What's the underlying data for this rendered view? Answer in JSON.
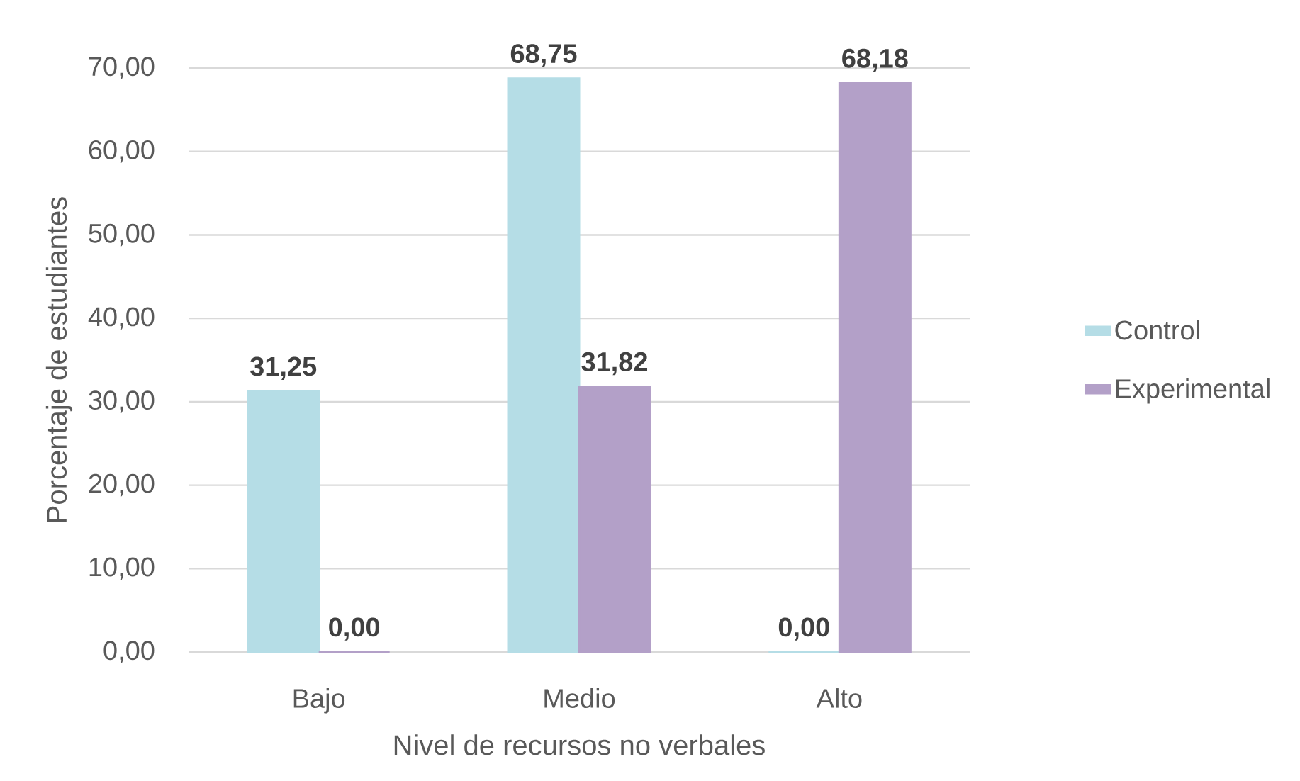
{
  "chart_data": {
    "type": "bar",
    "xlabel": "Nivel de recursos no verbales",
    "ylabel": "Porcentaje de estudiantes",
    "categories": [
      "Bajo",
      "Medio",
      "Alto"
    ],
    "series": [
      {
        "name": "Control",
        "color": "#b5dde6",
        "values": [
          31.25,
          68.75,
          0
        ],
        "value_labels": [
          "31,25",
          "68,75",
          "0,00"
        ]
      },
      {
        "name": "Experimental",
        "color": "#b3a0c8",
        "values": [
          0,
          31.82,
          68.18
        ],
        "value_labels": [
          "0,00",
          "31,82",
          "68,18"
        ]
      }
    ],
    "ylim": [
      0,
      70
    ],
    "yticks": [
      {
        "value": 0,
        "label": "0,00"
      },
      {
        "value": 10,
        "label": "10,00"
      },
      {
        "value": 20,
        "label": "20,00"
      },
      {
        "value": 30,
        "label": "30,00"
      },
      {
        "value": 40,
        "label": "40,00"
      },
      {
        "value": 50,
        "label": "50,00"
      },
      {
        "value": 60,
        "label": "60,00"
      },
      {
        "value": 70,
        "label": "70,00"
      }
    ],
    "grid": "y",
    "legend": "right"
  }
}
